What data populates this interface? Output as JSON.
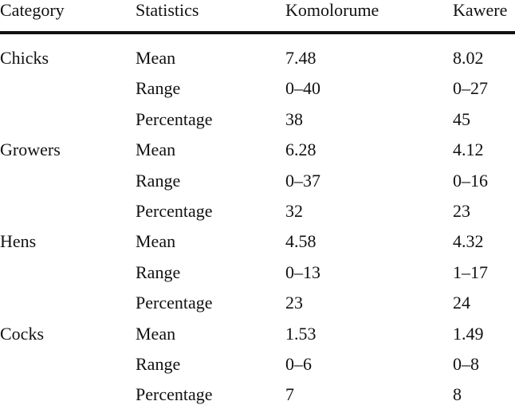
{
  "table": {
    "headers": [
      "Category",
      "Statistics",
      "Komolorume",
      "Kawere"
    ],
    "groups": [
      {
        "category": "Chicks",
        "rows": [
          [
            "Mean",
            "7.48",
            "8.02"
          ],
          [
            "Range",
            "0–40",
            "0–27"
          ],
          [
            "Percentage",
            "38",
            "45"
          ]
        ]
      },
      {
        "category": "Growers",
        "rows": [
          [
            "Mean",
            "6.28",
            "4.12"
          ],
          [
            "Range",
            "0–37",
            "0–16"
          ],
          [
            "Percentage",
            "32",
            "23"
          ]
        ]
      },
      {
        "category": "Hens",
        "rows": [
          [
            "Mean",
            "4.58",
            "4.32"
          ],
          [
            "Range",
            "0–13",
            "1–17"
          ],
          [
            "Percentage",
            "23",
            "24"
          ]
        ]
      },
      {
        "category": "Cocks",
        "rows": [
          [
            "Mean",
            "1.53",
            "1.49"
          ],
          [
            "Range",
            "0–6",
            "0–8"
          ],
          [
            "Percentage",
            "7",
            "8"
          ]
        ]
      }
    ]
  }
}
